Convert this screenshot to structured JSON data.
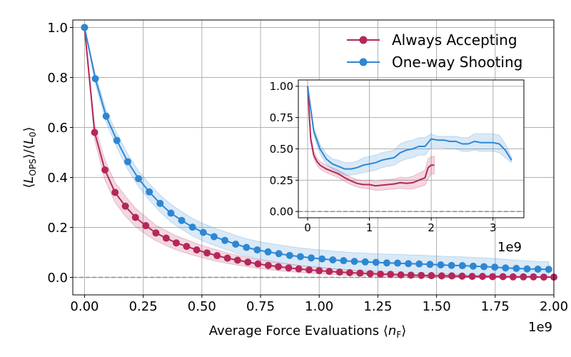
{
  "chart_data": [
    {
      "type": "line",
      "xlabel": "Average Force Evaluations ⟨n_F⟩",
      "ylabel": "⟨L_OPS⟩/⟨L_0⟩",
      "x_scale_label": "1e9",
      "xlim": [
        -0.05,
        2.0
      ],
      "ylim": [
        -0.07,
        1.03
      ],
      "xticks": [
        "0.00",
        "0.25",
        "0.50",
        "0.75",
        "1.00",
        "1.25",
        "1.50",
        "1.75",
        "2.00"
      ],
      "yticks": [
        "0.0",
        "0.2",
        "0.4",
        "0.6",
        "0.8",
        "1.0"
      ],
      "grid": true,
      "legend_position": "top-right",
      "reference_line_y": 0.0,
      "series": [
        {
          "name": "Always Accepting",
          "color": "#b5275a",
          "x": [
            0.0,
            0.043,
            0.087,
            0.13,
            0.174,
            0.217,
            0.261,
            0.304,
            0.348,
            0.391,
            0.435,
            0.478,
            0.522,
            0.565,
            0.609,
            0.652,
            0.696,
            0.739,
            0.783,
            0.826,
            0.87,
            0.913,
            0.957,
            1.0,
            1.043,
            1.087,
            1.13,
            1.174,
            1.217,
            1.261,
            1.304,
            1.348,
            1.391,
            1.435,
            1.478,
            1.522,
            1.565,
            1.609,
            1.652,
            1.696,
            1.739,
            1.783,
            1.826,
            1.87,
            1.913,
            1.957,
            2.0
          ],
          "y": [
            1.0,
            0.58,
            0.43,
            0.34,
            0.285,
            0.24,
            0.207,
            0.178,
            0.157,
            0.138,
            0.124,
            0.11,
            0.098,
            0.087,
            0.077,
            0.069,
            0.061,
            0.054,
            0.048,
            0.043,
            0.038,
            0.034,
            0.03,
            0.027,
            0.024,
            0.021,
            0.019,
            0.017,
            0.015,
            0.013,
            0.012,
            0.01,
            0.009,
            0.008,
            0.007,
            0.006,
            0.006,
            0.005,
            0.004,
            0.004,
            0.003,
            0.003,
            0.002,
            0.002,
            0.002,
            0.001,
            0.001
          ],
          "band_lower": [
            1.0,
            0.55,
            0.39,
            0.3,
            0.245,
            0.203,
            0.172,
            0.147,
            0.127,
            0.11,
            0.097,
            0.085,
            0.074,
            0.064,
            0.056,
            0.049,
            0.042,
            0.036,
            0.031,
            0.027,
            0.023,
            0.02,
            0.017,
            0.014,
            0.012,
            0.01,
            0.009,
            0.008,
            0.007,
            0.006,
            0.005,
            0.004,
            0.003,
            0.003,
            0.002,
            0.002,
            0.001,
            0.001,
            0.001,
            0.0,
            0.0,
            0.0,
            0.0,
            0.0,
            0.0,
            0.0,
            0.0
          ],
          "band_upper": [
            1.0,
            0.61,
            0.47,
            0.38,
            0.325,
            0.277,
            0.242,
            0.209,
            0.187,
            0.166,
            0.151,
            0.135,
            0.122,
            0.11,
            0.098,
            0.089,
            0.08,
            0.072,
            0.065,
            0.059,
            0.053,
            0.048,
            0.043,
            0.04,
            0.036,
            0.032,
            0.029,
            0.026,
            0.023,
            0.02,
            0.019,
            0.016,
            0.015,
            0.013,
            0.012,
            0.01,
            0.011,
            0.009,
            0.007,
            0.008,
            0.006,
            0.006,
            0.004,
            0.004,
            0.004,
            0.002,
            0.002
          ]
        },
        {
          "name": "One-way Shooting",
          "color": "#2e87d3",
          "x": [
            0.0,
            0.046,
            0.092,
            0.138,
            0.184,
            0.23,
            0.276,
            0.322,
            0.368,
            0.414,
            0.46,
            0.506,
            0.552,
            0.598,
            0.644,
            0.69,
            0.736,
            0.782,
            0.828,
            0.874,
            0.92,
            0.966,
            1.012,
            1.058,
            1.104,
            1.15,
            1.196,
            1.242,
            1.288,
            1.334,
            1.38,
            1.426,
            1.472,
            1.518,
            1.564,
            1.61,
            1.656,
            1.702,
            1.748,
            1.794,
            1.84,
            1.886,
            1.932,
            1.978
          ],
          "y": [
            1.0,
            0.795,
            0.645,
            0.548,
            0.463,
            0.395,
            0.342,
            0.296,
            0.257,
            0.228,
            0.201,
            0.18,
            0.163,
            0.148,
            0.133,
            0.12,
            0.11,
            0.102,
            0.095,
            0.088,
            0.083,
            0.078,
            0.074,
            0.07,
            0.067,
            0.064,
            0.062,
            0.06,
            0.058,
            0.057,
            0.055,
            0.054,
            0.052,
            0.05,
            0.048,
            0.047,
            0.045,
            0.043,
            0.041,
            0.038,
            0.036,
            0.034,
            0.033,
            0.032
          ],
          "band_lower": [
            1.0,
            0.775,
            0.62,
            0.52,
            0.432,
            0.363,
            0.309,
            0.262,
            0.222,
            0.193,
            0.166,
            0.145,
            0.128,
            0.113,
            0.098,
            0.085,
            0.075,
            0.067,
            0.06,
            0.053,
            0.048,
            0.043,
            0.039,
            0.035,
            0.032,
            0.029,
            0.027,
            0.025,
            0.023,
            0.022,
            0.02,
            0.019,
            0.017,
            0.015,
            0.013,
            0.012,
            0.01,
            0.008,
            0.006,
            0.004,
            0.003,
            0.002,
            0.002,
            0.001
          ],
          "band_upper": [
            1.0,
            0.815,
            0.67,
            0.576,
            0.494,
            0.427,
            0.375,
            0.33,
            0.292,
            0.263,
            0.236,
            0.215,
            0.198,
            0.183,
            0.168,
            0.155,
            0.145,
            0.137,
            0.13,
            0.123,
            0.118,
            0.113,
            0.109,
            0.105,
            0.102,
            0.099,
            0.097,
            0.095,
            0.093,
            0.092,
            0.09,
            0.089,
            0.087,
            0.085,
            0.083,
            0.082,
            0.08,
            0.078,
            0.076,
            0.072,
            0.069,
            0.066,
            0.064,
            0.063
          ]
        }
      ]
    },
    {
      "type": "line",
      "role": "inset",
      "x_scale_label": "1e9",
      "xlim": [
        -0.15,
        3.5
      ],
      "ylim": [
        -0.05,
        1.05
      ],
      "xticks": [
        "0",
        "1",
        "2",
        "3"
      ],
      "yticks": [
        "0.00",
        "0.25",
        "0.50",
        "0.75",
        "1.00"
      ],
      "grid": true,
      "reference_line_y": 0.0,
      "series": [
        {
          "name": "Always Accepting",
          "color": "#b5275a",
          "x": [
            0.0,
            0.05,
            0.1,
            0.15,
            0.2,
            0.3,
            0.4,
            0.5,
            0.6,
            0.7,
            0.8,
            0.9,
            1.0,
            1.1,
            1.2,
            1.3,
            1.4,
            1.5,
            1.6,
            1.7,
            1.8,
            1.9,
            1.95,
            2.0,
            2.05
          ],
          "y": [
            1.0,
            0.58,
            0.45,
            0.4,
            0.37,
            0.34,
            0.32,
            0.3,
            0.27,
            0.245,
            0.225,
            0.215,
            0.215,
            0.205,
            0.21,
            0.215,
            0.22,
            0.23,
            0.225,
            0.23,
            0.25,
            0.27,
            0.35,
            0.37,
            0.37
          ],
          "band_lower": [
            1.0,
            0.55,
            0.42,
            0.37,
            0.34,
            0.31,
            0.29,
            0.27,
            0.24,
            0.215,
            0.195,
            0.185,
            0.18,
            0.17,
            0.17,
            0.175,
            0.18,
            0.185,
            0.18,
            0.18,
            0.195,
            0.21,
            0.26,
            0.3,
            0.3
          ],
          "band_upper": [
            1.0,
            0.61,
            0.48,
            0.43,
            0.4,
            0.37,
            0.35,
            0.33,
            0.3,
            0.275,
            0.255,
            0.245,
            0.25,
            0.24,
            0.25,
            0.255,
            0.26,
            0.275,
            0.27,
            0.28,
            0.305,
            0.33,
            0.42,
            0.44,
            0.44
          ]
        },
        {
          "name": "One-way Shooting",
          "color": "#2e87d3",
          "x": [
            0.0,
            0.1,
            0.2,
            0.3,
            0.4,
            0.5,
            0.6,
            0.7,
            0.8,
            0.9,
            1.0,
            1.1,
            1.2,
            1.3,
            1.4,
            1.5,
            1.6,
            1.7,
            1.8,
            1.9,
            2.0,
            2.1,
            2.2,
            2.3,
            2.4,
            2.5,
            2.6,
            2.7,
            2.8,
            2.9,
            3.0,
            3.1,
            3.2,
            3.3
          ],
          "y": [
            1.0,
            0.64,
            0.5,
            0.42,
            0.38,
            0.36,
            0.34,
            0.34,
            0.35,
            0.37,
            0.38,
            0.39,
            0.41,
            0.42,
            0.43,
            0.47,
            0.49,
            0.5,
            0.52,
            0.52,
            0.58,
            0.57,
            0.57,
            0.56,
            0.56,
            0.54,
            0.54,
            0.56,
            0.55,
            0.55,
            0.55,
            0.54,
            0.49,
            0.41
          ],
          "band_lower": [
            1.0,
            0.61,
            0.46,
            0.38,
            0.34,
            0.31,
            0.29,
            0.29,
            0.3,
            0.31,
            0.32,
            0.33,
            0.35,
            0.36,
            0.37,
            0.4,
            0.42,
            0.43,
            0.45,
            0.45,
            0.51,
            0.51,
            0.51,
            0.5,
            0.5,
            0.48,
            0.48,
            0.49,
            0.48,
            0.48,
            0.48,
            0.47,
            0.43,
            0.39
          ],
          "band_upper": [
            1.0,
            0.67,
            0.54,
            0.46,
            0.42,
            0.41,
            0.39,
            0.39,
            0.4,
            0.43,
            0.44,
            0.45,
            0.47,
            0.48,
            0.49,
            0.54,
            0.56,
            0.57,
            0.59,
            0.59,
            0.62,
            0.6,
            0.6,
            0.6,
            0.6,
            0.59,
            0.59,
            0.62,
            0.62,
            0.62,
            0.62,
            0.61,
            0.54,
            0.43
          ]
        }
      ]
    }
  ]
}
